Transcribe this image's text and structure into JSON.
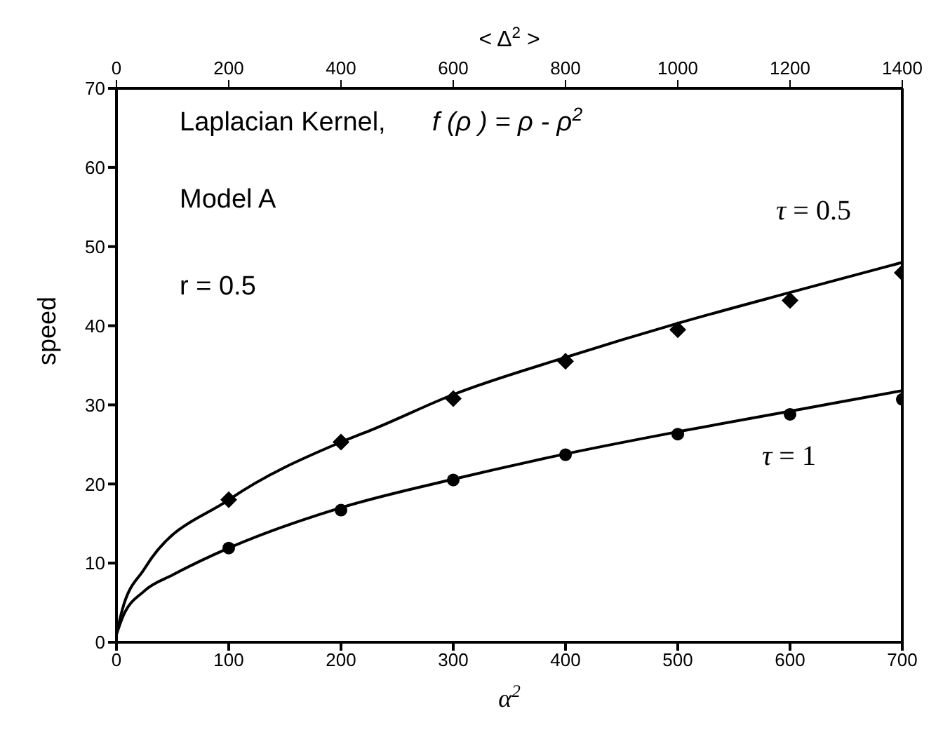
{
  "chart_data": {
    "type": "scatter",
    "xlabel": "α$^{2}$",
    "ylabel": "speed",
    "x2label": "< Δ$^{2}$ >",
    "xlim": [
      0,
      700
    ],
    "xticks": [
      0,
      100,
      200,
      300,
      400,
      500,
      600,
      700
    ],
    "x2lim": [
      0,
      1400
    ],
    "x2ticks": [
      0,
      200,
      400,
      600,
      800,
      1000,
      1200,
      1400
    ],
    "ylim": [
      0,
      70
    ],
    "yticks": [
      0,
      10,
      20,
      30,
      40,
      50,
      60,
      70
    ],
    "grid": false,
    "legend": false,
    "annotations": [
      "Laplacian Kernel,",
      "f (ρ ) = ρ - ρ$^{2}$",
      "Model A",
      "r = 0.5"
    ],
    "series": [
      {
        "name": "τ = 0.5",
        "marker": "diamond",
        "color": "#000000",
        "x": [
          100,
          200,
          300,
          400,
          500,
          600,
          700
        ],
        "values": [
          18,
          25.3,
          30.8,
          35.5,
          39.5,
          43.2,
          46.7
        ]
      },
      {
        "name": "τ = 1",
        "marker": "circle",
        "color": "#000000",
        "x": [
          100,
          200,
          300,
          400,
          500,
          600,
          700
        ],
        "values": [
          11.9,
          16.7,
          20.5,
          23.7,
          26.3,
          28.8,
          30.7
        ]
      },
      {
        "type": "line",
        "line_style": "solid",
        "color": "#000000",
        "x": [
          0,
          5,
          25,
          100,
          200,
          230,
          300,
          400,
          500,
          600,
          700
        ],
        "values": [
          1,
          4,
          9.3,
          18,
          25.3,
          27,
          31.3,
          36,
          40.3,
          44.2,
          48
        ]
      },
      {
        "type": "line",
        "line_style": "solid",
        "color": "#000000",
        "x": [
          0,
          5,
          25,
          50,
          100,
          200,
          300,
          400,
          500,
          600,
          700
        ],
        "values": [
          1,
          3,
          6.5,
          8.5,
          11.9,
          17,
          20.6,
          23.8,
          26.6,
          29.2,
          31.8
        ]
      }
    ]
  }
}
